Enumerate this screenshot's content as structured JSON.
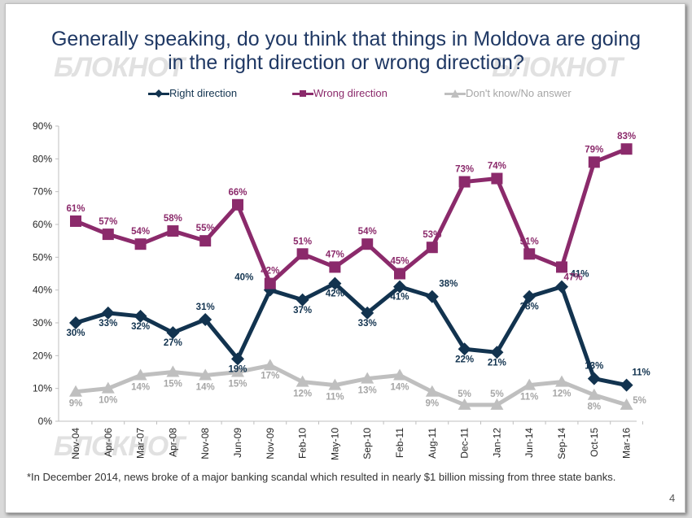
{
  "slide": {
    "title_line1": "Generally speaking, do you think that things in Moldova are going",
    "title_line2": "in the right direction or wrong direction?",
    "watermark_text": "БЛОКНОТ",
    "footnote": "*In December 2014, news broke of a major banking scandal which resulted in nearly $1 billion missing from three state banks.",
    "page_number": "4"
  },
  "colors": {
    "right": "#12334f",
    "wrong": "#8b2a6b",
    "dontknow": "#bfbfbf",
    "title": "#1f3864"
  },
  "chart_data": {
    "type": "line",
    "categories": [
      "Nov-04",
      "Apr-06",
      "Mar-07",
      "Apr-08",
      "Nov-08",
      "Jun-09",
      "Nov-09",
      "Feb-10",
      "May-10",
      "Sep-10",
      "Feb-11",
      "Aug-11",
      "Dec-11",
      "Jan-12",
      "Jun-14",
      "Sep-14",
      "Oct-15",
      "Mar-16"
    ],
    "ylim": [
      0,
      90
    ],
    "yticks": [
      "0%",
      "10%",
      "20%",
      "30%",
      "40%",
      "50%",
      "60%",
      "70%",
      "80%",
      "90%"
    ],
    "legend_position": "top",
    "series": [
      {
        "name": "Right direction",
        "key": "right",
        "values": [
          30,
          33,
          32,
          27,
          31,
          19,
          40,
          37,
          42,
          33,
          41,
          38,
          22,
          21,
          38,
          41,
          13,
          11
        ]
      },
      {
        "name": "Wrong direction",
        "key": "wrong",
        "values": [
          61,
          57,
          54,
          58,
          55,
          66,
          42,
          51,
          47,
          54,
          45,
          53,
          73,
          74,
          51,
          47,
          79,
          83
        ]
      },
      {
        "name": "Don't know/No answer",
        "key": "dontknow",
        "values": [
          9,
          10,
          14,
          15,
          14,
          15,
          17,
          12,
          11,
          13,
          14,
          9,
          5,
          5,
          11,
          12,
          8,
          5
        ]
      }
    ]
  }
}
